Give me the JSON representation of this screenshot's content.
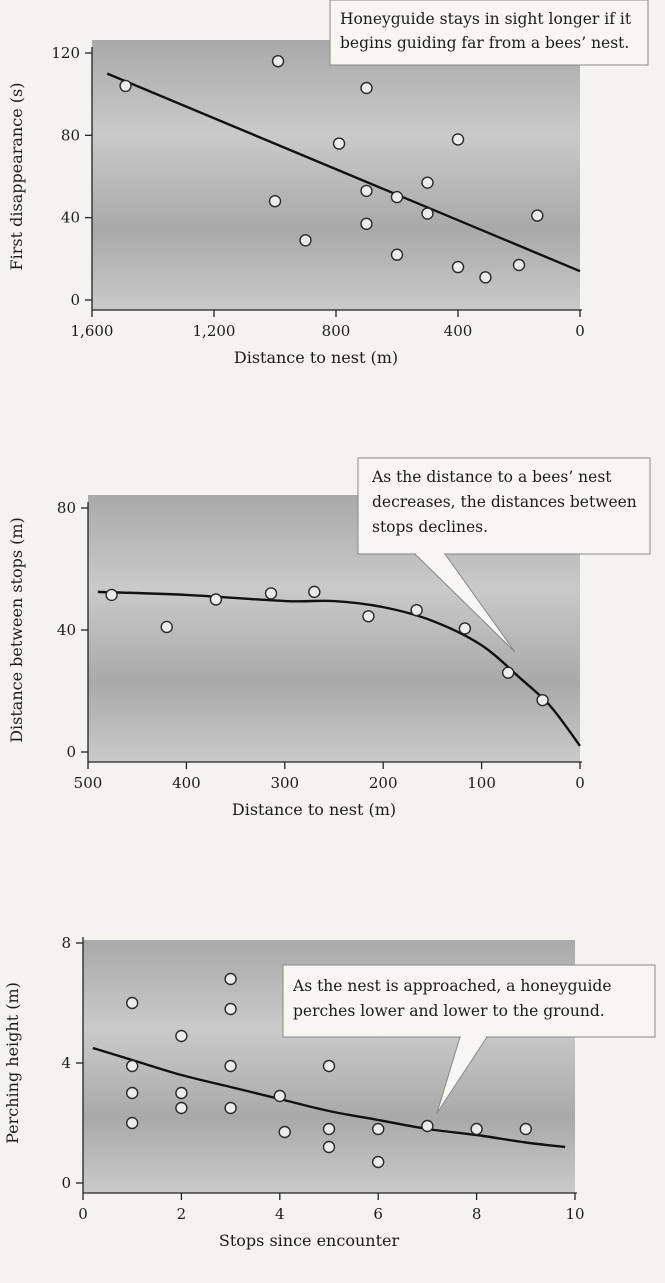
{
  "colors": {
    "page_background": "#f4f3f0",
    "plot_background": "#a9a9a9",
    "plot_background_light": "#cacaca",
    "marker_fill": "#ececec",
    "marker_stroke": "#2a2a2a",
    "trend_line": "#111111",
    "callout_background": "#f7f6f2"
  },
  "chart_data": [
    {
      "type": "scatter",
      "title": "",
      "xlabel": "Distance to nest (m)",
      "ylabel": "First disappearance (s)",
      "x_reversed": true,
      "xlim": [
        1600,
        0
      ],
      "ylim": [
        0,
        120
      ],
      "x_ticks": [
        1600,
        1200,
        800,
        400,
        0
      ],
      "x_tick_labels": [
        "1,600",
        "1,200",
        "800",
        "400",
        "0"
      ],
      "y_ticks": [
        0,
        40,
        80,
        120
      ],
      "y_tick_labels": [
        "0",
        "40",
        "80",
        "120"
      ],
      "grid": false,
      "legend": "none",
      "points": [
        {
          "x": 1490,
          "y": 104
        },
        {
          "x": 990,
          "y": 116
        },
        {
          "x": 1000,
          "y": 48
        },
        {
          "x": 900,
          "y": 29
        },
        {
          "x": 790,
          "y": 76
        },
        {
          "x": 700,
          "y": 103
        },
        {
          "x": 700,
          "y": 53
        },
        {
          "x": 700,
          "y": 37
        },
        {
          "x": 600,
          "y": 50
        },
        {
          "x": 600,
          "y": 22
        },
        {
          "x": 500,
          "y": 57
        },
        {
          "x": 500,
          "y": 42
        },
        {
          "x": 400,
          "y": 78
        },
        {
          "x": 400,
          "y": 16
        },
        {
          "x": 310,
          "y": 11
        },
        {
          "x": 200,
          "y": 17
        },
        {
          "x": 140,
          "y": 41
        }
      ],
      "trend_line": [
        {
          "x": 1550,
          "y": 110
        },
        {
          "x": 0,
          "y": 14
        }
      ],
      "callout": {
        "lines": [
          "Honeyguide stays in sight longer if it",
          "begins guiding far from a bees’ nest."
        ],
        "pointer": false
      }
    },
    {
      "type": "scatter",
      "title": "",
      "xlabel": "Distance to nest (m)",
      "ylabel": "Distance between stops (m)",
      "x_reversed": true,
      "xlim": [
        500,
        0
      ],
      "ylim": [
        0,
        80
      ],
      "x_ticks": [
        500,
        400,
        300,
        200,
        100,
        0
      ],
      "x_tick_labels": [
        "500",
        "400",
        "300",
        "200",
        "100",
        "0"
      ],
      "y_ticks": [
        0,
        40,
        80
      ],
      "y_tick_labels": [
        "0",
        "40",
        "80"
      ],
      "grid": false,
      "legend": "none",
      "points": [
        {
          "x": 476,
          "y": 51.5
        },
        {
          "x": 420,
          "y": 41
        },
        {
          "x": 370,
          "y": 50
        },
        {
          "x": 314,
          "y": 52
        },
        {
          "x": 270,
          "y": 52.5
        },
        {
          "x": 215,
          "y": 44.5
        },
        {
          "x": 166,
          "y": 46.5
        },
        {
          "x": 117,
          "y": 40.5
        },
        {
          "x": 73,
          "y": 26
        },
        {
          "x": 38,
          "y": 17
        }
      ],
      "trend_line": [
        {
          "x": 490,
          "y": 52.5
        },
        {
          "x": 400,
          "y": 51.5
        },
        {
          "x": 300,
          "y": 49.5
        },
        {
          "x": 250,
          "y": 49.5
        },
        {
          "x": 200,
          "y": 47.5
        },
        {
          "x": 150,
          "y": 43
        },
        {
          "x": 100,
          "y": 35
        },
        {
          "x": 60,
          "y": 24
        },
        {
          "x": 30,
          "y": 15
        },
        {
          "x": 0,
          "y": 2
        }
      ],
      "callout": {
        "lines": [
          "As the distance to a bees’ nest",
          "decreases, the distances between",
          "stops declines."
        ],
        "pointer": true
      }
    },
    {
      "type": "scatter",
      "title": "",
      "xlabel": "Stops since encounter",
      "ylabel": "Perching height (m)",
      "x_reversed": false,
      "xlim": [
        0,
        10
      ],
      "ylim": [
        0,
        8
      ],
      "x_ticks": [
        0,
        2,
        4,
        6,
        8,
        10
      ],
      "x_tick_labels": [
        "0",
        "2",
        "4",
        "6",
        "8",
        "10"
      ],
      "y_ticks": [
        0,
        4,
        8
      ],
      "y_tick_labels": [
        "0",
        "4",
        "8"
      ],
      "grid": false,
      "legend": "none",
      "points": [
        {
          "x": 1,
          "y": 6
        },
        {
          "x": 1,
          "y": 3.9
        },
        {
          "x": 1,
          "y": 3
        },
        {
          "x": 1,
          "y": 2
        },
        {
          "x": 2,
          "y": 4.9
        },
        {
          "x": 2,
          "y": 3
        },
        {
          "x": 2,
          "y": 2.5
        },
        {
          "x": 3,
          "y": 6.8
        },
        {
          "x": 3,
          "y": 5.8
        },
        {
          "x": 3,
          "y": 3.9
        },
        {
          "x": 3,
          "y": 2.5
        },
        {
          "x": 4,
          "y": 2.9
        },
        {
          "x": 4.1,
          "y": 1.7
        },
        {
          "x": 5,
          "y": 3.9
        },
        {
          "x": 5,
          "y": 1.8
        },
        {
          "x": 5,
          "y": 1.2
        },
        {
          "x": 6,
          "y": 1.8
        },
        {
          "x": 6,
          "y": 0.7
        },
        {
          "x": 7,
          "y": 1.9
        },
        {
          "x": 8,
          "y": 1.8
        },
        {
          "x": 9,
          "y": 1.8
        }
      ],
      "trend_line": [
        {
          "x": 0.2,
          "y": 4.5
        },
        {
          "x": 1,
          "y": 4.1
        },
        {
          "x": 2,
          "y": 3.6
        },
        {
          "x": 3,
          "y": 3.2
        },
        {
          "x": 4,
          "y": 2.8
        },
        {
          "x": 5,
          "y": 2.4
        },
        {
          "x": 6,
          "y": 2.1
        },
        {
          "x": 7,
          "y": 1.8
        },
        {
          "x": 8,
          "y": 1.6
        },
        {
          "x": 9,
          "y": 1.35
        },
        {
          "x": 9.8,
          "y": 1.2
        }
      ],
      "callout": {
        "lines": [
          "As the nest is approached, a honeyguide",
          "perches lower and lower to the ground."
        ],
        "pointer": true
      }
    }
  ]
}
